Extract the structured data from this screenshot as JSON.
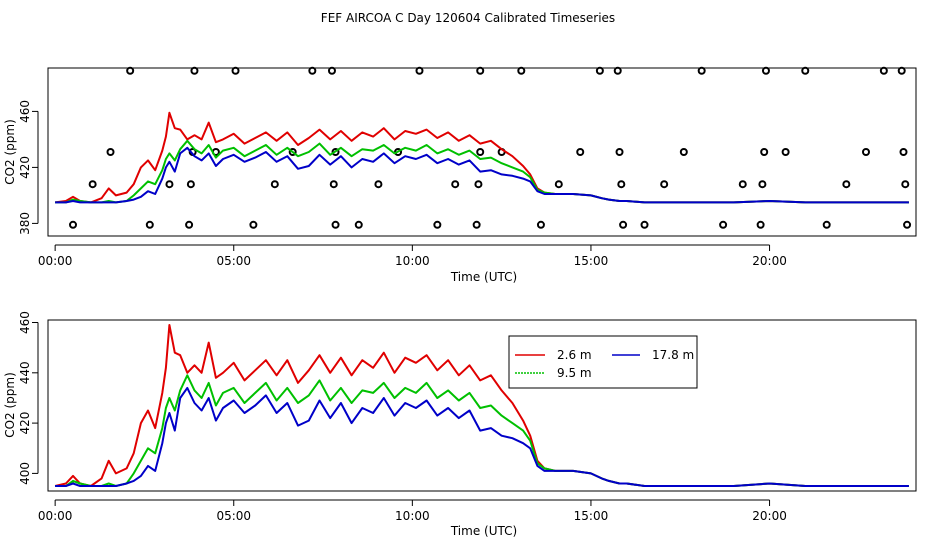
{
  "chart_data": [
    {
      "type": "scatter",
      "title": "FEF AIRCOA C  Day 120604  Calibrated Timeseries",
      "xlabel": "Time (UTC)",
      "ylabel": "CO2 (ppm)",
      "xlim": [
        -0.2,
        24.1
      ],
      "ylim": [
        371,
        491
      ],
      "x_ticks": [
        0,
        5,
        10,
        15,
        20
      ],
      "x_tick_labels": [
        "00:00",
        "05:00",
        "10:00",
        "15:00",
        "20:00"
      ],
      "y_ticks": [
        380,
        420,
        460
      ],
      "y_tick_labels": [
        "380",
        "420",
        "460"
      ],
      "series": [
        {
          "name": "2.6 m",
          "color": "#e00000"
        },
        {
          "name": "9.5 m",
          "color": "#00c000"
        },
        {
          "name": "17.8 m",
          "color": "#0000c8"
        }
      ],
      "markers": [
        [
          0.5,
          379
        ],
        [
          1.05,
          408
        ],
        [
          1.55,
          431
        ],
        [
          2.1,
          489
        ],
        [
          2.65,
          379
        ],
        [
          3.2,
          408
        ],
        [
          3.75,
          379
        ],
        [
          3.85,
          431
        ],
        [
          3.9,
          489
        ],
        [
          3.8,
          408
        ],
        [
          4.5,
          431
        ],
        [
          5.05,
          489
        ],
        [
          5.55,
          379
        ],
        [
          6.15,
          408
        ],
        [
          6.65,
          431
        ],
        [
          7.2,
          489
        ],
        [
          7.75,
          489
        ],
        [
          7.85,
          379
        ],
        [
          7.8,
          408
        ],
        [
          7.85,
          431
        ],
        [
          8.5,
          379
        ],
        [
          9.05,
          408
        ],
        [
          9.6,
          431
        ],
        [
          10.2,
          489
        ],
        [
          10.7,
          379
        ],
        [
          11.2,
          408
        ],
        [
          11.8,
          379
        ],
        [
          11.85,
          408
        ],
        [
          11.9,
          489
        ],
        [
          11.9,
          431
        ],
        [
          12.5,
          431
        ],
        [
          13.05,
          489
        ],
        [
          13.6,
          379
        ],
        [
          14.1,
          408
        ],
        [
          14.7,
          431
        ],
        [
          15.25,
          489
        ],
        [
          15.75,
          489
        ],
        [
          15.8,
          431
        ],
        [
          15.85,
          408
        ],
        [
          15.9,
          379
        ],
        [
          16.5,
          379
        ],
        [
          17.05,
          408
        ],
        [
          17.6,
          431
        ],
        [
          18.1,
          489
        ],
        [
          18.7,
          379
        ],
        [
          19.25,
          408
        ],
        [
          19.75,
          379
        ],
        [
          19.8,
          408
        ],
        [
          19.85,
          431
        ],
        [
          19.9,
          489
        ],
        [
          20.45,
          431
        ],
        [
          21.0,
          489
        ],
        [
          21.6,
          379
        ],
        [
          22.15,
          408
        ],
        [
          22.7,
          431
        ],
        [
          23.2,
          489
        ],
        [
          23.7,
          489
        ],
        [
          23.75,
          431
        ],
        [
          23.8,
          408
        ],
        [
          23.85,
          379
        ]
      ]
    },
    {
      "type": "line",
      "title": "",
      "xlabel": "Time (UTC)",
      "ylabel": "CO2 (ppm)",
      "xlim": [
        -0.2,
        24.1
      ],
      "ylim": [
        393,
        461
      ],
      "x_ticks": [
        0,
        5,
        10,
        15,
        20
      ],
      "x_tick_labels": [
        "00:00",
        "05:00",
        "10:00",
        "15:00",
        "20:00"
      ],
      "y_ticks": [
        400,
        420,
        440,
        460
      ],
      "y_tick_labels": [
        "400",
        "420",
        "440",
        "460"
      ],
      "legend": {
        "position": "top-right",
        "entries": [
          "2.6 m",
          "9.5 m",
          "17.8 m"
        ]
      },
      "x": [
        0.0,
        0.3,
        0.5,
        0.7,
        1.0,
        1.3,
        1.5,
        1.7,
        2.0,
        2.2,
        2.4,
        2.6,
        2.8,
        3.0,
        3.1,
        3.2,
        3.35,
        3.5,
        3.7,
        3.9,
        4.1,
        4.3,
        4.5,
        4.7,
        5.0,
        5.3,
        5.6,
        5.9,
        6.2,
        6.5,
        6.8,
        7.1,
        7.4,
        7.7,
        8.0,
        8.3,
        8.6,
        8.9,
        9.2,
        9.5,
        9.8,
        10.1,
        10.4,
        10.7,
        11.0,
        11.3,
        11.6,
        11.9,
        12.2,
        12.5,
        12.8,
        13.1,
        13.3,
        13.5,
        13.7,
        14.0,
        14.5,
        15.0,
        15.3,
        15.5,
        15.8,
        16.0,
        16.5,
        17.0,
        17.5,
        18.0,
        19.0,
        20.0,
        21.0,
        22.0,
        23.0,
        23.9
      ],
      "series": [
        {
          "name": "2.6 m",
          "color": "#e00000",
          "values": [
            395,
            396,
            399,
            396,
            395,
            398,
            405,
            400,
            402,
            408,
            420,
            425,
            418,
            432,
            442,
            459,
            448,
            447,
            440,
            443,
            440,
            452,
            438,
            440,
            444,
            437,
            441,
            445,
            439,
            445,
            436,
            441,
            447,
            440,
            446,
            439,
            445,
            442,
            448,
            440,
            446,
            444,
            447,
            441,
            445,
            439,
            443,
            437,
            439,
            433,
            428,
            421,
            415,
            405,
            402,
            401,
            401,
            400,
            398,
            397,
            396,
            396,
            395,
            395,
            395,
            395,
            395,
            396,
            395,
            395,
            395,
            395
          ]
        },
        {
          "name": "9.5 m",
          "color": "#00c000",
          "values": [
            395,
            395,
            397,
            396,
            395,
            395,
            396,
            395,
            396,
            400,
            405,
            410,
            408,
            418,
            426,
            430,
            425,
            433,
            439,
            433,
            430,
            436,
            427,
            432,
            434,
            428,
            432,
            436,
            429,
            434,
            428,
            431,
            437,
            429,
            434,
            428,
            433,
            432,
            436,
            430,
            434,
            432,
            436,
            430,
            433,
            429,
            432,
            426,
            427,
            423,
            420,
            417,
            413,
            404,
            402,
            401,
            401,
            400,
            398,
            397,
            396,
            396,
            395,
            395,
            395,
            395,
            395,
            396,
            395,
            395,
            395,
            395
          ]
        },
        {
          "name": "17.8 m",
          "color": "#0000c8",
          "values": [
            395,
            395,
            396,
            395,
            395,
            395,
            395,
            395,
            396,
            397,
            399,
            403,
            401,
            412,
            420,
            424,
            417,
            430,
            434,
            428,
            425,
            430,
            421,
            426,
            429,
            424,
            427,
            431,
            424,
            428,
            419,
            421,
            429,
            422,
            428,
            420,
            426,
            424,
            430,
            423,
            428,
            426,
            429,
            423,
            426,
            422,
            425,
            417,
            418,
            415,
            414,
            412,
            410,
            403,
            401,
            401,
            401,
            400,
            398,
            397,
            396,
            396,
            395,
            395,
            395,
            395,
            395,
            396,
            395,
            395,
            395,
            395
          ]
        }
      ]
    }
  ]
}
